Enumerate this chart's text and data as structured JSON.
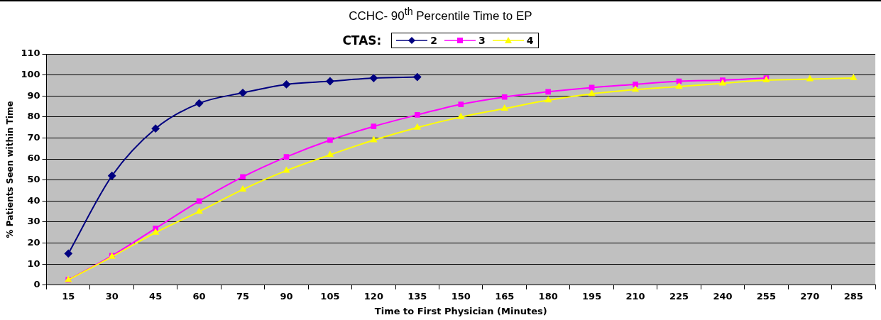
{
  "chart_data": {
    "type": "line",
    "title": "CCHC- 90$^{th}$ Percentile Time to EP",
    "xlabel": "Time to First Physician (Minutes)",
    "ylabel": "% Patients Seen within Time",
    "legend_title": "CTAS:",
    "legend": "top",
    "categories": [
      "15",
      "30",
      "45",
      "60",
      "75",
      "90",
      "105",
      "120",
      "135",
      "150",
      "165",
      "180",
      "195",
      "210",
      "225",
      "240",
      "255",
      "270",
      "285"
    ],
    "series": [
      {
        "name": "2",
        "color": "#000080",
        "marker": "diamond",
        "values": [
          15,
          52,
          74.5,
          86.5,
          91.5,
          95.5,
          97,
          98.5,
          99,
          null,
          null,
          null,
          null,
          null,
          null,
          null,
          null,
          null,
          null
        ]
      },
      {
        "name": "3",
        "color": "#ff00ff",
        "marker": "square",
        "values": [
          2.5,
          14,
          27,
          40,
          51.5,
          61,
          69,
          75.5,
          81,
          86,
          89.5,
          92,
          94,
          95.5,
          97,
          97.5,
          98.5,
          null,
          null
        ]
      },
      {
        "name": "4",
        "color": "#ffff00",
        "marker": "triangle",
        "values": [
          2.5,
          13.5,
          25,
          35,
          45.5,
          54.5,
          62,
          69,
          75,
          80,
          84,
          88,
          91,
          93,
          94.5,
          96,
          97.5,
          98,
          98.5
        ]
      }
    ],
    "ylim": [
      0,
      110
    ],
    "yticks": [
      0,
      10,
      20,
      30,
      40,
      50,
      60,
      70,
      80,
      90,
      100,
      110
    ],
    "grid": "y"
  }
}
